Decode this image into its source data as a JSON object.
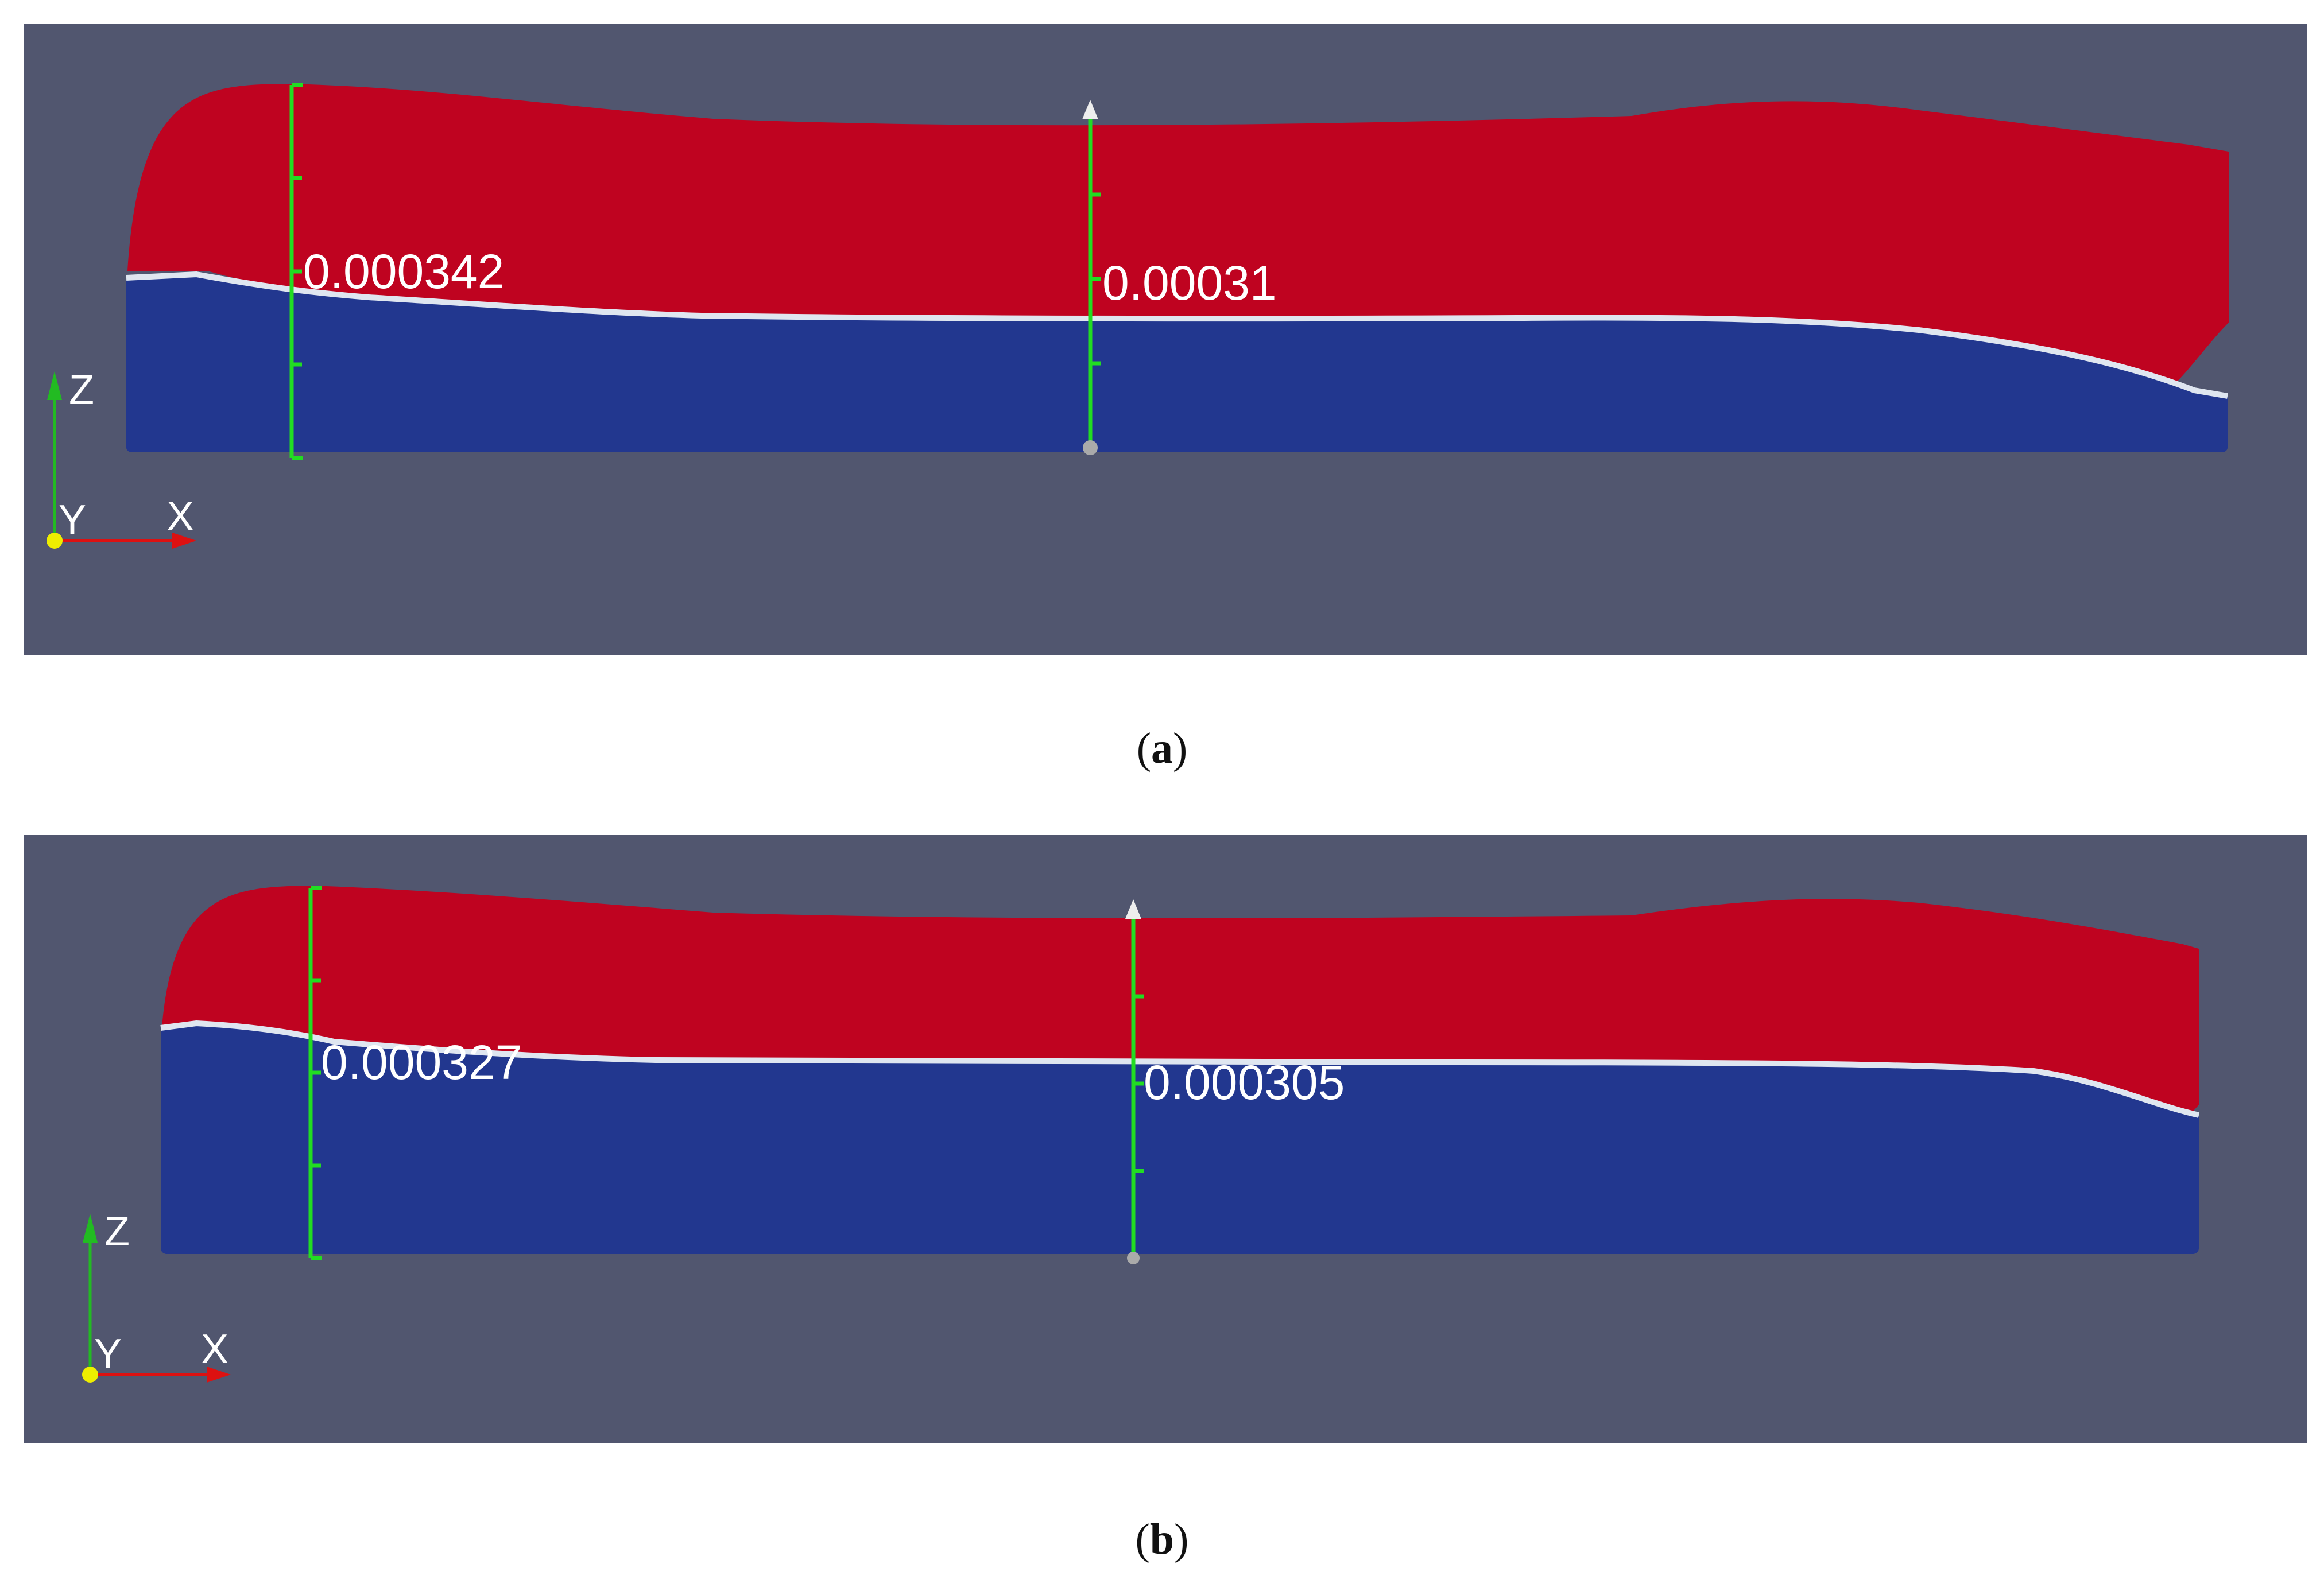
{
  "panels": [
    {
      "id": "a",
      "caption_letter": "a",
      "measurement_left": "0.000342",
      "measurement_center": "0.00031",
      "axes": {
        "z": "Z",
        "y": "Y",
        "x": "X"
      }
    },
    {
      "id": "b",
      "caption_letter": "b",
      "measurement_left": "0.000327",
      "measurement_center": "0.000305",
      "axes": {
        "z": "Z",
        "y": "Y",
        "x": "X"
      }
    }
  ],
  "colors": {
    "background": "#51566f",
    "substrate_blue": "#22378f",
    "deposit_red": "#bf0320",
    "ruler_green": "#22dd22",
    "interface_white": "#dfe6f0",
    "axis_z_green": "#22bb22",
    "axis_x_red": "#dd1111",
    "axis_y_yellow": "#eeee00"
  }
}
